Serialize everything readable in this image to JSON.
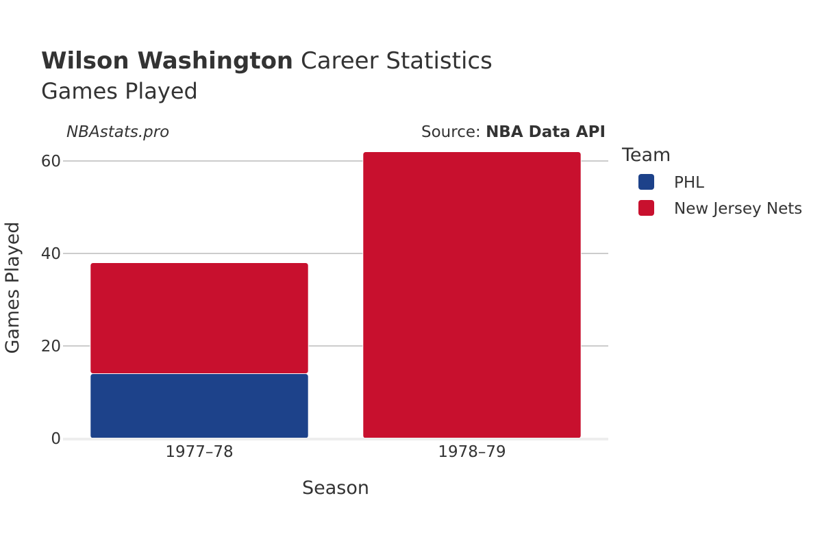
{
  "chart_data": {
    "type": "bar",
    "stacked": true,
    "title_bold": "Wilson Washington",
    "title_rest": " Career Statistics",
    "subtitle": "Games Played",
    "watermark": "NBAstats.pro",
    "source_prefix": "Source: ",
    "source_bold": "NBA Data API",
    "xlabel": "Season",
    "ylabel": "Games Played",
    "categories": [
      "1977–78",
      "1978–79"
    ],
    "ylim": [
      0,
      65
    ],
    "yticks": [
      0,
      20,
      40,
      60
    ],
    "ytick_labels": [
      "0",
      "20",
      "40",
      "60"
    ],
    "legend_title": "Team",
    "series": [
      {
        "name": "PHL",
        "color": "#1d428a",
        "values": [
          14,
          0
        ]
      },
      {
        "name": "New Jersey Nets",
        "color": "#c8102e",
        "values": [
          24,
          62
        ]
      }
    ]
  }
}
